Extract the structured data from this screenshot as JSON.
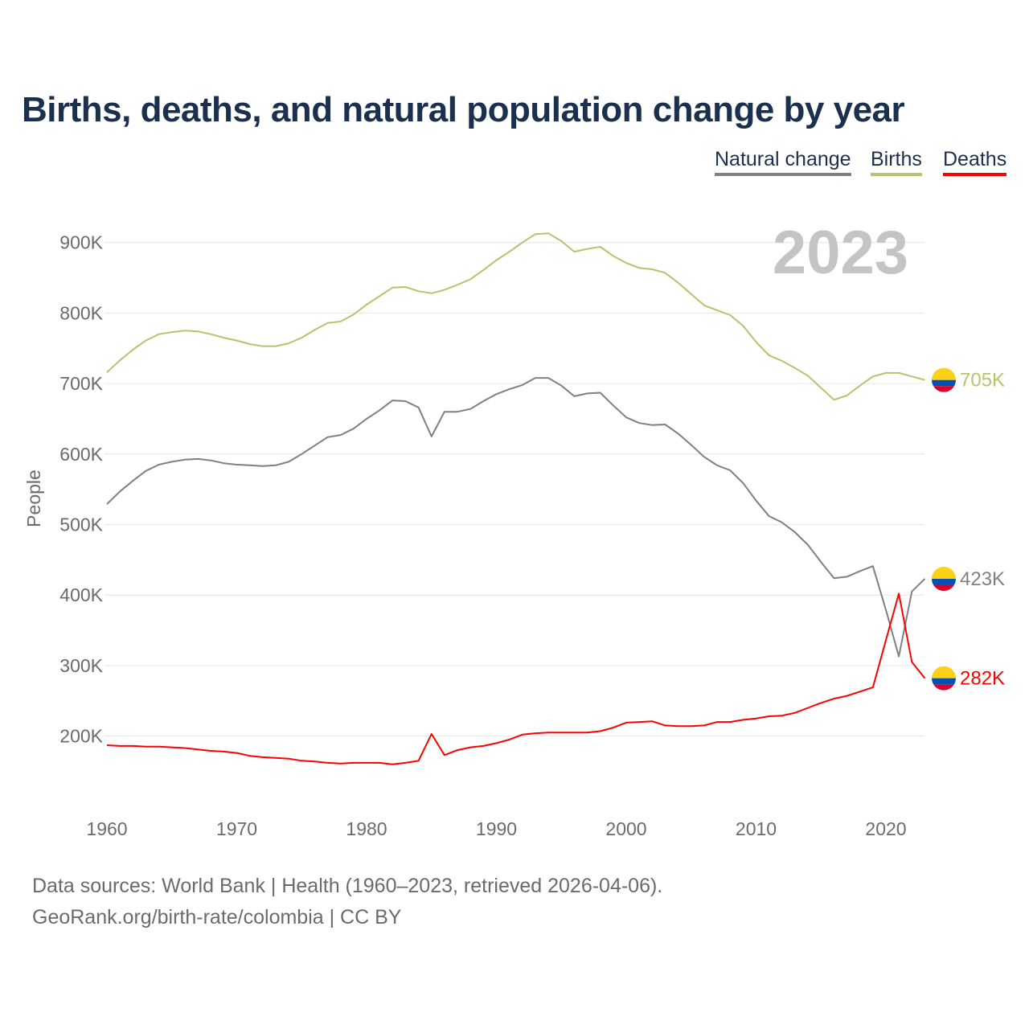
{
  "title": "Births, deaths, and natural population change by year",
  "legend": [
    {
      "label": "Natural change",
      "color": "#808080"
    },
    {
      "label": "Births",
      "color": "#b5c46e"
    },
    {
      "label": "Deaths",
      "color": "#ff0000"
    }
  ],
  "year_label": "2023",
  "footer": {
    "line1": "Data sources: World Bank | Health (1960–2023, retrieved 2026-04-06).",
    "line2": "GeoRank.org/birth-rate/colombia | CC BY"
  },
  "chart_data": {
    "type": "line",
    "title": "Births, deaths, and natural population change by year",
    "xlabel": "",
    "ylabel": "People",
    "xlim": [
      1960,
      2023
    ],
    "ylim": [
      100,
      950
    ],
    "units": "thousands",
    "grid": true,
    "legend_position": "top-right",
    "x_ticks": [
      "1960",
      "1970",
      "1980",
      "1990",
      "2000",
      "2010",
      "2020"
    ],
    "y_ticks": [
      "200K",
      "300K",
      "400K",
      "500K",
      "600K",
      "700K",
      "800K",
      "900K"
    ],
    "y_tick_values": [
      200,
      300,
      400,
      500,
      600,
      700,
      800,
      900
    ],
    "x_start": 1960,
    "series": [
      {
        "name": "Natural change",
        "color": "#808080",
        "end_label": "423K",
        "values": [
          529,
          547,
          562,
          576,
          585,
          589,
          592,
          593,
          591,
          587,
          585,
          584,
          583,
          584,
          589,
          600,
          612,
          624,
          627,
          636,
          650,
          662,
          676,
          675,
          666,
          625,
          660,
          660,
          664,
          675,
          685,
          692,
          698,
          708,
          708,
          697,
          682,
          686,
          687,
          669,
          652,
          644,
          641,
          642,
          629,
          613,
          596,
          584,
          577,
          559,
          534,
          512,
          503,
          489,
          471,
          447,
          424,
          426,
          434,
          441,
          379,
          313,
          405,
          423
        ]
      },
      {
        "name": "Births",
        "color": "#b5c46e",
        "end_label": "705K",
        "values": [
          716,
          733,
          748,
          761,
          770,
          773,
          775,
          774,
          770,
          765,
          761,
          756,
          753,
          753,
          757,
          765,
          776,
          786,
          788,
          798,
          812,
          824,
          836,
          837,
          831,
          828,
          833,
          840,
          848,
          861,
          875,
          887,
          900,
          912,
          913,
          902,
          887,
          891,
          894,
          881,
          871,
          864,
          862,
          857,
          843,
          827,
          811,
          804,
          797,
          782,
          759,
          740,
          732,
          722,
          711,
          694,
          677,
          683,
          697,
          710,
          715,
          715,
          710,
          705
        ]
      },
      {
        "name": "Deaths",
        "color": "#ff0000",
        "end_label": "282K",
        "values": [
          187,
          186,
          186,
          185,
          185,
          184,
          183,
          181,
          179,
          178,
          176,
          172,
          170,
          169,
          168,
          165,
          164,
          162,
          161,
          162,
          162,
          162,
          160,
          162,
          165,
          203,
          173,
          180,
          184,
          186,
          190,
          195,
          202,
          204,
          205,
          205,
          205,
          205,
          207,
          212,
          219,
          220,
          221,
          215,
          214,
          214,
          215,
          220,
          220,
          223,
          225,
          228,
          229,
          233,
          240,
          247,
          253,
          257,
          263,
          269,
          336,
          402,
          305,
          282
        ]
      }
    ]
  }
}
